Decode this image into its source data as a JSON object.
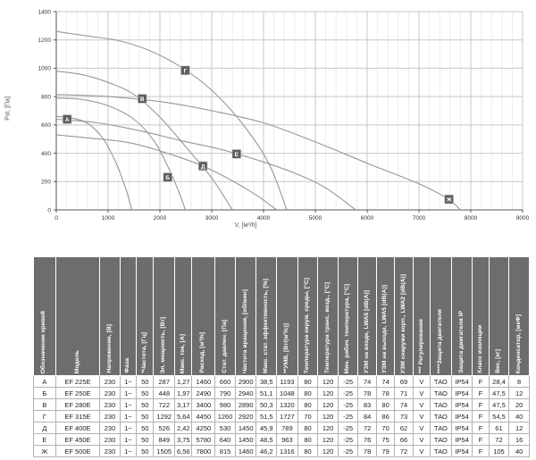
{
  "chart_data": {
    "type": "line",
    "title": "",
    "xlabel": "V, [м³/h]",
    "ylabel": "Pst, [Па]",
    "xlim": [
      0,
      9000
    ],
    "ylim": [
      0,
      1400
    ],
    "x_major_ticks": [
      0,
      1000,
      2000,
      3000,
      4000,
      5000,
      6000,
      7000,
      8000,
      9000
    ],
    "y_major_ticks": [
      0,
      200,
      400,
      600,
      800,
      1000,
      1200,
      1400
    ],
    "x_minor_step": 200,
    "grid": "on",
    "legend_position": "markers-on-curves",
    "line_color": "#979797",
    "marker_bg": "#5e5e5e",
    "marker_border": "#cfcfcf",
    "marker_text_color": "#ffffff",
    "series": [
      {
        "name": "А",
        "marker_at": [
          210,
          640
        ],
        "points": [
          [
            0,
            660
          ],
          [
            300,
            648
          ],
          [
            600,
            612
          ],
          [
            900,
            505
          ],
          [
            1150,
            335
          ],
          [
            1350,
            140
          ],
          [
            1460,
            0
          ]
        ]
      },
      {
        "name": "Б",
        "marker_at": [
          2150,
          230
        ],
        "points": [
          [
            0,
            790
          ],
          [
            500,
            780
          ],
          [
            1000,
            735
          ],
          [
            1500,
            640
          ],
          [
            1900,
            480
          ],
          [
            2200,
            270
          ],
          [
            2400,
            95
          ],
          [
            2490,
            0
          ]
        ]
      },
      {
        "name": "В",
        "marker_at": [
          1660,
          785
        ],
        "points": [
          [
            0,
            980
          ],
          [
            500,
            955
          ],
          [
            1000,
            900
          ],
          [
            1500,
            815
          ],
          [
            2000,
            655
          ],
          [
            2500,
            445
          ],
          [
            3000,
            225
          ],
          [
            3400,
            0
          ]
        ]
      },
      {
        "name": "Г",
        "marker_at": [
          2490,
          985
        ],
        "points": [
          [
            0,
            1260
          ],
          [
            600,
            1228
          ],
          [
            1200,
            1195
          ],
          [
            1800,
            1125
          ],
          [
            2400,
            1010
          ],
          [
            3000,
            845
          ],
          [
            3600,
            605
          ],
          [
            4100,
            330
          ],
          [
            4450,
            0
          ]
        ]
      },
      {
        "name": "Д",
        "marker_at": [
          2830,
          310
        ],
        "points": [
          [
            0,
            530
          ],
          [
            700,
            505
          ],
          [
            1400,
            475
          ],
          [
            2100,
            405
          ],
          [
            2800,
            315
          ],
          [
            3400,
            205
          ],
          [
            3900,
            95
          ],
          [
            4250,
            0
          ]
        ]
      },
      {
        "name": "Е",
        "marker_at": [
          3480,
          395
        ],
        "points": [
          [
            0,
            640
          ],
          [
            800,
            615
          ],
          [
            1600,
            560
          ],
          [
            2400,
            490
          ],
          [
            3200,
            425
          ],
          [
            3900,
            350
          ],
          [
            4600,
            260
          ],
          [
            5200,
            155
          ],
          [
            5780,
            0
          ]
        ]
      },
      {
        "name": "Ж",
        "marker_at": [
          7580,
          75
        ],
        "points": [
          [
            0,
            815
          ],
          [
            1000,
            800
          ],
          [
            2000,
            765
          ],
          [
            3000,
            700
          ],
          [
            4000,
            615
          ],
          [
            5000,
            480
          ],
          [
            6000,
            330
          ],
          [
            7000,
            185
          ],
          [
            7550,
            80
          ],
          [
            7800,
            0
          ]
        ]
      }
    ]
  },
  "table": {
    "headers": [
      "Обозначение кривой",
      "Модель",
      "Напряжение, [В]",
      "Фаза",
      "*Частота, [Гц]",
      "Эл. мощность, [Вт]",
      "Макс. ток, [А]",
      "Расход, [м³/h]",
      "Стат. давлен. [Па]",
      "Частота вращения, [об/мин]",
      "Макс. стат. эффективность, [%]",
      "**УМВ, [Вт/(м³/с)]",
      "Температура окруж. среды, [°C]",
      "Температура транс. возд., [°C]",
      "Мин. рабоч. температура, [°C]",
      "УЗМ на входе, LWA5 [dB(A)]",
      "УЗМ на выходе, LWA5 [dB(A)]",
      "УЗМ снаружи корп., LWA2 [dB(A)]",
      "*** Регулирование",
      "****Защита двигателя",
      "Защита двигателя IP",
      "Класс изоляции",
      "Вес, [кг]",
      "Конденсатор, [мкФ]"
    ],
    "rows": [
      [
        "А",
        "EF 225E",
        "230",
        "1~",
        "50",
        "287",
        "1,27",
        "1460",
        "660",
        "2900",
        "38,5",
        "1193",
        "80",
        "120",
        "-25",
        "74",
        "74",
        "69",
        "V",
        "ТАО",
        "IP54",
        "F",
        "28,4",
        "8"
      ],
      [
        "Б",
        "EF 250E",
        "230",
        "1~",
        "50",
        "448",
        "1,97",
        "2490",
        "790",
        "2940",
        "51,1",
        "1048",
        "80",
        "120",
        "-25",
        "78",
        "78",
        "71",
        "V",
        "ТАО",
        "IP54",
        "F",
        "47,5",
        "12"
      ],
      [
        "В",
        "EF 280E",
        "230",
        "1~",
        "50",
        "722",
        "3,17",
        "3400",
        "980",
        "2890",
        "50,3",
        "1320",
        "80",
        "120",
        "-25",
        "83",
        "80",
        "74",
        "V",
        "ТАО",
        "IP54",
        "F",
        "47,5",
        "20"
      ],
      [
        "Г",
        "EF 315E",
        "230",
        "1~",
        "50",
        "1292",
        "5,64",
        "4450",
        "1260",
        "2920",
        "51,5",
        "1727",
        "70",
        "120",
        "-25",
        "84",
        "86",
        "73",
        "V",
        "ТАО",
        "IP54",
        "F",
        "54,5",
        "40"
      ],
      [
        "Д",
        "EF 400E",
        "230",
        "1~",
        "50",
        "526",
        "2,42",
        "4250",
        "530",
        "1450",
        "45,9",
        "789",
        "80",
        "120",
        "-25",
        "72",
        "70",
        "62",
        "V",
        "ТАО",
        "IP54",
        "F",
        "61",
        "12"
      ],
      [
        "Е",
        "EF 450E",
        "230",
        "1~",
        "50",
        "849",
        "3,75",
        "5780",
        "640",
        "1450",
        "48,5",
        "963",
        "80",
        "120",
        "-25",
        "76",
        "75",
        "66",
        "V",
        "ТАО",
        "IP54",
        "F",
        "72",
        "16"
      ],
      [
        "Ж",
        "EF 500E",
        "230",
        "1~",
        "50",
        "1505",
        "6,56",
        "7800",
        "815",
        "1460",
        "46,2",
        "1316",
        "80",
        "120",
        "-25",
        "78",
        "79",
        "72",
        "V",
        "ТАО",
        "IP54",
        "F",
        "105",
        "40"
      ]
    ]
  }
}
